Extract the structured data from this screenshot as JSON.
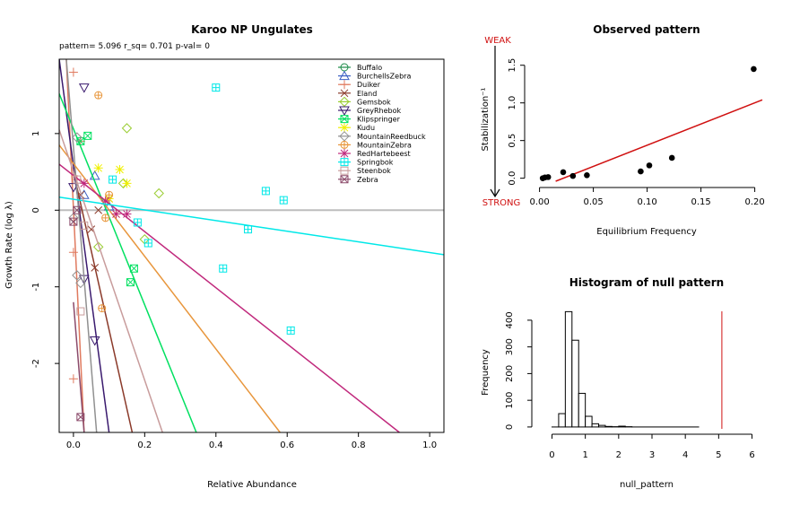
{
  "chart_data": [
    {
      "type": "scatter",
      "title": "Karoo NP Ungulates",
      "subtitle": "pattern= 5.096 r_sq= 0.701 p-val= 0",
      "xlabel": "Relative Abundance",
      "ylabel": "Growth Rate (log λ)",
      "xlim": [
        -0.04,
        1.04
      ],
      "ylim": [
        -2.9,
        1.97
      ],
      "xticks": [
        "0.0",
        "0.2",
        "0.4",
        "0.6",
        "0.8",
        "1.0"
      ],
      "yticks": [
        "-2",
        "-1",
        "0",
        "1"
      ],
      "xtick_values": [
        0,
        0.2,
        0.4,
        0.6,
        0.8,
        1.0
      ],
      "ytick_values": [
        -2,
        -1,
        0,
        1
      ],
      "legend_position": "top-right",
      "hline_y": 0,
      "series": [
        {
          "name": "Buffalo",
          "color": "#1e8b4a",
          "marker": "circle-open",
          "points": [],
          "line": null
        },
        {
          "name": "BurchellsZebra",
          "color": "#3b5fc4",
          "marker": "triangle-up",
          "points": [
            [
              0.06,
              0.45
            ],
            [
              0.03,
              0.2
            ],
            [
              0.1,
              0.05
            ]
          ],
          "line": null
        },
        {
          "name": "Duiker",
          "color": "#e07a5f",
          "marker": "plus",
          "points": [
            [
              0.0,
              1.8
            ],
            [
              0.0,
              -2.2
            ],
            [
              0.01,
              0.4
            ],
            [
              0.0,
              -0.55
            ],
            [
              0.02,
              0.9
            ]
          ],
          "line": [
            [
              -0.02,
              1.97
            ],
            [
              0.03,
              -2.9
            ]
          ]
        },
        {
          "name": "Eland",
          "color": "#8b3a2a",
          "marker": "x",
          "points": [
            [
              0.02,
              0.2
            ],
            [
              0.06,
              -0.75
            ],
            [
              0.05,
              -0.25
            ],
            [
              0.1,
              0.15
            ],
            [
              0.07,
              0.0
            ]
          ],
          "line": [
            [
              0.0,
              0.5
            ],
            [
              0.165,
              -2.9
            ]
          ]
        },
        {
          "name": "Gemsbok",
          "color": "#9acd32",
          "marker": "diamond-open",
          "points": [
            [
              0.15,
              1.07
            ],
            [
              0.24,
              0.22
            ],
            [
              0.2,
              -0.38
            ],
            [
              0.14,
              0.35
            ],
            [
              0.07,
              -0.48
            ]
          ],
          "line": null
        },
        {
          "name": "GreyRhebok",
          "color": "#3a1a6e",
          "marker": "triangle-down",
          "points": [
            [
              0.03,
              1.6
            ],
            [
              0.06,
              -1.7
            ],
            [
              0.03,
              -0.9
            ],
            [
              0.0,
              0.3
            ]
          ],
          "line": [
            [
              -0.04,
              1.97
            ],
            [
              0.1,
              -2.9
            ]
          ]
        },
        {
          "name": "Klipspringer",
          "color": "#00e060",
          "marker": "square-x",
          "points": [
            [
              0.04,
              0.97
            ],
            [
              0.17,
              -0.76
            ],
            [
              0.16,
              -0.94
            ],
            [
              0.02,
              0.9
            ]
          ],
          "line": [
            [
              -0.04,
              1.52
            ],
            [
              0.345,
              -2.9
            ]
          ]
        },
        {
          "name": "Kudu",
          "color": "#f0f000",
          "marker": "asterisk",
          "points": [
            [
              0.13,
              0.53
            ],
            [
              0.1,
              0.15
            ],
            [
              0.15,
              0.35
            ],
            [
              0.07,
              0.55
            ],
            [
              0.12,
              -0.05
            ]
          ],
          "line": null
        },
        {
          "name": "MountainReedbuck",
          "color": "#909090",
          "marker": "diamond",
          "points": [
            [
              0.01,
              0.95
            ],
            [
              0.01,
              -0.85
            ],
            [
              0.02,
              -0.95
            ],
            [
              0.0,
              -0.1
            ]
          ],
          "line": [
            [
              -0.02,
              1.97
            ],
            [
              0.065,
              -2.9
            ]
          ]
        },
        {
          "name": "MountainZebra",
          "color": "#e8963c",
          "marker": "circle-plus",
          "points": [
            [
              0.07,
              1.5
            ],
            [
              0.09,
              -0.1
            ],
            [
              0.08,
              -1.28
            ],
            [
              0.1,
              0.2
            ]
          ],
          "line": [
            [
              -0.04,
              0.85
            ],
            [
              0.58,
              -2.9
            ]
          ]
        },
        {
          "name": "RedHartebeest",
          "color": "#c0287c",
          "marker": "asterisk",
          "points": [
            [
              0.12,
              -0.05
            ],
            [
              0.15,
              -0.05
            ],
            [
              0.03,
              0.35
            ],
            [
              0.09,
              0.12
            ]
          ],
          "line": [
            [
              -0.04,
              0.6
            ],
            [
              0.915,
              -2.9
            ]
          ]
        },
        {
          "name": "Springbok",
          "color": "#00e8e8",
          "marker": "square-plus",
          "points": [
            [
              0.4,
              1.6
            ],
            [
              0.54,
              0.25
            ],
            [
              0.59,
              0.13
            ],
            [
              0.49,
              -0.25
            ],
            [
              0.42,
              -0.76
            ],
            [
              0.21,
              -0.43
            ],
            [
              0.18,
              -0.16
            ],
            [
              0.61,
              -1.57
            ],
            [
              0.11,
              0.4
            ]
          ],
          "line": [
            [
              -0.04,
              0.17
            ],
            [
              1.04,
              -0.58
            ]
          ]
        },
        {
          "name": "Steenbok",
          "color": "#c89c9c",
          "marker": "square",
          "points": [
            [
              0.02,
              -1.32
            ],
            [
              0.01,
              0.4
            ],
            [
              0.03,
              -0.2
            ]
          ],
          "line": [
            [
              -0.04,
              1.05
            ],
            [
              0.25,
              -2.9
            ]
          ]
        },
        {
          "name": "Zebra",
          "color": "#8b4a6a",
          "marker": "square-x",
          "points": [
            [
              0.02,
              -2.7
            ],
            [
              0.0,
              -0.15
            ],
            [
              0.01,
              0.0
            ]
          ],
          "line": [
            [
              0.0,
              -1.2
            ],
            [
              0.03,
              -2.9
            ]
          ]
        }
      ]
    },
    {
      "type": "scatter",
      "title": "Observed pattern",
      "xlabel": "Equilibrium Frequency",
      "ylabel": "Stabilization⁻¹",
      "xlim": [
        -0.008,
        0.207
      ],
      "ylim": [
        -0.04,
        1.58
      ],
      "xticks": [
        "0.00",
        "0.05",
        "0.10",
        "0.15",
        "0.20"
      ],
      "yticks": [
        "0.0",
        "0.5",
        "1.0",
        "1.5"
      ],
      "xtick_values": [
        0,
        0.05,
        0.1,
        0.15,
        0.2
      ],
      "ytick_values": [
        0,
        0.5,
        1.0,
        1.5
      ],
      "annotations": {
        "weak": "WEAK",
        "strong": "STRONG"
      },
      "points": [
        [
          0.003,
          0.0
        ],
        [
          0.005,
          0.01
        ],
        [
          0.008,
          0.015
        ],
        [
          0.022,
          0.08
        ],
        [
          0.031,
          0.03
        ],
        [
          0.044,
          0.04
        ],
        [
          0.094,
          0.09
        ],
        [
          0.102,
          0.17
        ],
        [
          0.123,
          0.27
        ],
        [
          0.199,
          1.45
        ]
      ],
      "fit_line": [
        [
          0.015,
          -0.04
        ],
        [
          0.207,
          1.04
        ]
      ],
      "fit_color": "#d01010"
    },
    {
      "type": "bar",
      "title": "Histogram of null pattern",
      "xlabel": "null_pattern",
      "ylabel": "Frequency",
      "xlim": [
        -0.04,
        6.04
      ],
      "ylim": [
        -7,
        440
      ],
      "xticks": [
        "0",
        "1",
        "2",
        "3",
        "4",
        "5",
        "6"
      ],
      "yticks": [
        "0",
        "100",
        "200",
        "300",
        "400"
      ],
      "xtick_values": [
        0,
        1,
        2,
        3,
        4,
        5,
        6
      ],
      "ytick_values": [
        0,
        100,
        200,
        300,
        400
      ],
      "bins": [
        [
          0.0,
          0.2,
          0
        ],
        [
          0.2,
          0.4,
          50
        ],
        [
          0.4,
          0.6,
          432
        ],
        [
          0.6,
          0.8,
          325
        ],
        [
          0.8,
          1.0,
          126
        ],
        [
          1.0,
          1.2,
          40
        ],
        [
          1.2,
          1.4,
          12
        ],
        [
          1.4,
          1.6,
          6
        ],
        [
          1.6,
          1.8,
          2
        ],
        [
          1.8,
          2.0,
          1
        ],
        [
          2.0,
          2.2,
          3
        ],
        [
          2.2,
          2.4,
          1
        ],
        [
          2.4,
          4.4,
          0
        ]
      ],
      "observed_line_x": 5.096,
      "observed_color": "#d01010"
    }
  ]
}
